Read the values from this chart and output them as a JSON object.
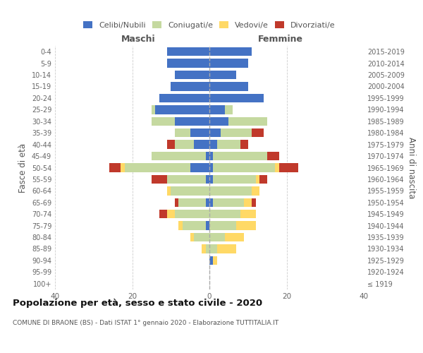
{
  "age_groups": [
    "100+",
    "95-99",
    "90-94",
    "85-89",
    "80-84",
    "75-79",
    "70-74",
    "65-69",
    "60-64",
    "55-59",
    "50-54",
    "45-49",
    "40-44",
    "35-39",
    "30-34",
    "25-29",
    "20-24",
    "15-19",
    "10-14",
    "5-9",
    "0-4"
  ],
  "birth_years": [
    "≤ 1919",
    "1920-1924",
    "1925-1929",
    "1930-1934",
    "1935-1939",
    "1940-1944",
    "1945-1949",
    "1950-1954",
    "1955-1959",
    "1960-1964",
    "1965-1969",
    "1970-1974",
    "1975-1979",
    "1980-1984",
    "1985-1989",
    "1990-1994",
    "1995-1999",
    "2000-2004",
    "2005-2009",
    "2010-2014",
    "2015-2019"
  ],
  "male": {
    "celibi": [
      0,
      0,
      0,
      0,
      0,
      1,
      0,
      1,
      0,
      1,
      5,
      1,
      4,
      5,
      9,
      14,
      13,
      10,
      9,
      11,
      11
    ],
    "coniugati": [
      0,
      0,
      0,
      1,
      4,
      6,
      9,
      7,
      10,
      10,
      17,
      14,
      5,
      4,
      6,
      1,
      0,
      0,
      0,
      0,
      0
    ],
    "vedovi": [
      0,
      0,
      0,
      1,
      1,
      1,
      2,
      0,
      1,
      0,
      1,
      0,
      0,
      0,
      0,
      0,
      0,
      0,
      0,
      0,
      0
    ],
    "divorziati": [
      0,
      0,
      0,
      0,
      0,
      0,
      2,
      1,
      0,
      4,
      3,
      0,
      2,
      0,
      0,
      0,
      0,
      0,
      0,
      0,
      0
    ]
  },
  "female": {
    "nubili": [
      0,
      0,
      1,
      0,
      0,
      0,
      0,
      1,
      0,
      1,
      1,
      1,
      2,
      3,
      5,
      4,
      14,
      10,
      7,
      10,
      11
    ],
    "coniugate": [
      0,
      0,
      0,
      2,
      4,
      7,
      8,
      8,
      11,
      11,
      16,
      14,
      6,
      8,
      10,
      2,
      0,
      0,
      0,
      0,
      0
    ],
    "vedove": [
      0,
      0,
      1,
      5,
      5,
      5,
      4,
      2,
      2,
      1,
      1,
      0,
      0,
      0,
      0,
      0,
      0,
      0,
      0,
      0,
      0
    ],
    "divorziate": [
      0,
      0,
      0,
      0,
      0,
      0,
      0,
      1,
      0,
      2,
      5,
      3,
      2,
      3,
      0,
      0,
      0,
      0,
      0,
      0,
      0
    ]
  },
  "colors": {
    "celibi": "#4472c4",
    "coniugati": "#c5d9a0",
    "vedovi": "#ffd966",
    "divorziati": "#c0392b"
  },
  "xlim": 40,
  "title": "Popolazione per età, sesso e stato civile - 2020",
  "subtitle": "COMUNE DI BRAONE (BS) - Dati ISTAT 1° gennaio 2020 - Elaborazione TUTTITALIA.IT",
  "ylabel_left": "Fasce di età",
  "ylabel_right": "Anni di nascita",
  "xlabel_left": "Maschi",
  "xlabel_right": "Femmine",
  "bg_color": "#ffffff",
  "grid_color": "#cccccc",
  "legend_labels": [
    "Celibi/Nubili",
    "Coniugati/e",
    "Vedovi/e",
    "Divorziati/e"
  ]
}
